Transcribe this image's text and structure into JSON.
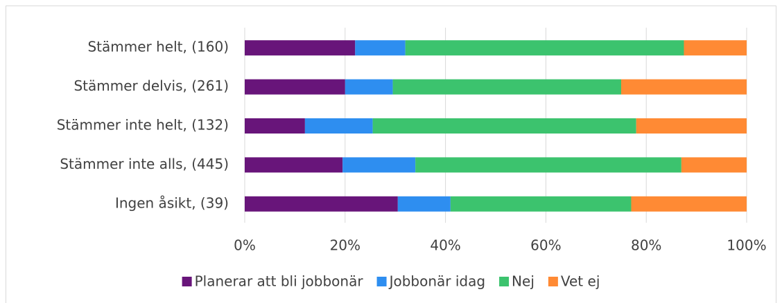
{
  "chart_data": {
    "type": "stacked-bar-horizontal",
    "categories": [
      "Stämmer helt, (160)",
      "Stämmer delvis, (261)",
      "Stämmer inte helt, (132)",
      "Stämmer inte alls, (445)",
      "Ingen åsikt, (39)"
    ],
    "series": [
      {
        "name": "Planerar att bli jobbonär",
        "color": "#68157a",
        "values": [
          22,
          20,
          12,
          19.5,
          30.5
        ]
      },
      {
        "name": "Jobbonär idag",
        "color": "#2e8ef0",
        "values": [
          10,
          9.5,
          13.5,
          14.5,
          10.5
        ]
      },
      {
        "name": "Nej",
        "color": "#3cc36e",
        "values": [
          55.5,
          45.5,
          52.5,
          53,
          36
        ]
      },
      {
        "name": "Vet ej",
        "color": "#ff8a34",
        "values": [
          12.5,
          25,
          22,
          13,
          23
        ]
      }
    ],
    "xlim": [
      0,
      100
    ],
    "xticks": [
      {
        "value": 0,
        "label": "0%"
      },
      {
        "value": 20,
        "label": "20%"
      },
      {
        "value": 40,
        "label": "40%"
      },
      {
        "value": 60,
        "label": "60%"
      },
      {
        "value": 80,
        "label": "80%"
      },
      {
        "value": 100,
        "label": "100%"
      }
    ],
    "grid": true,
    "legend": "bottom"
  }
}
